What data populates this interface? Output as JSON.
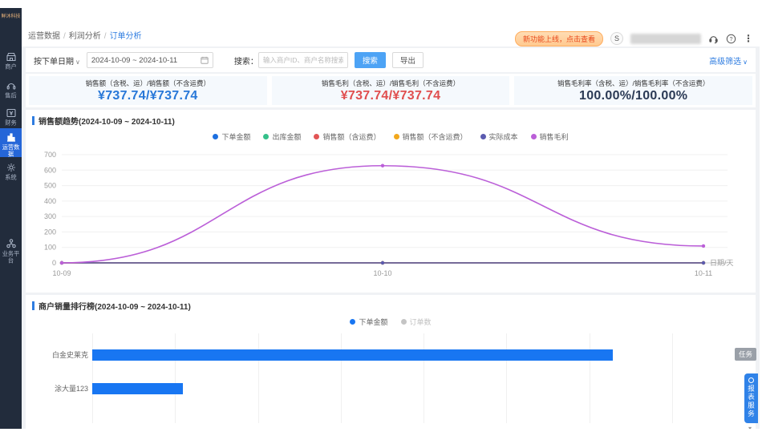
{
  "app": {
    "logo": "鲜沐科技"
  },
  "colors": {
    "accent": "#2e7ce0",
    "sidebar_active": "#2566d8",
    "stat_blue": "#2878d8",
    "stat_red": "#e04e4e",
    "stat_navy": "#2b3a55",
    "bar_blue": "#1876f2"
  },
  "sidebar": {
    "items": [
      {
        "key": "merchant",
        "label": "商户",
        "icon": "storefront-icon",
        "active": false
      },
      {
        "key": "aftersales",
        "label": "售后",
        "icon": "headset-icon",
        "active": false
      },
      {
        "key": "finance",
        "label": "财务",
        "icon": "finance-icon",
        "active": false
      },
      {
        "key": "operations",
        "label": "运营数据",
        "icon": "bar-chart-icon",
        "active": true
      },
      {
        "key": "system",
        "label": "系统",
        "icon": "gear-icon",
        "active": false
      }
    ],
    "bottom_item": {
      "key": "business-platform",
      "label": "业务平台",
      "icon": "platform-icon"
    }
  },
  "breadcrumb": {
    "separator": "/",
    "items": [
      "运营数据",
      "利润分析",
      "订单分析"
    ]
  },
  "topbar": {
    "promo_badge": "新功能上线，点击查看",
    "avatar_initial": "S"
  },
  "filters": {
    "date_type_label": "按下单日期",
    "date_range": "2024-10-09 ~ 2024-10-11",
    "search_label": "搜索：",
    "search_placeholder": "输入商户ID、商户名称搜索",
    "search_button": "搜索",
    "export_button": "导出",
    "advanced_link": "高级筛选"
  },
  "stats": [
    {
      "label": "销售额（含税、运）/销售额（不含运费）",
      "value": "¥737.74/¥737.74",
      "color": "#2878d8"
    },
    {
      "label": "销售毛利（含税、运）/销售毛利（不含运费）",
      "value": "¥737.74/¥737.74",
      "color": "#e04e4e"
    },
    {
      "label": "销售毛利率（含税、运）/销售毛利率（不含运费）",
      "value": "100.00%/100.00%",
      "color": "#2b3a55"
    }
  ],
  "floating": {
    "task_badge": "任务",
    "service_tab": "报表服务"
  },
  "chart_data": [
    {
      "type": "line",
      "title": "销售额趋势(2024-10-09 ~ 2024-10-11)",
      "x": [
        "10-09",
        "10-10",
        "10-11"
      ],
      "xlabel": "日期/天",
      "ylim": [
        0,
        700
      ],
      "yticks": [
        0,
        100,
        200,
        300,
        400,
        500,
        600,
        700
      ],
      "grid": true,
      "smooth": true,
      "legend_position": "top",
      "series": [
        {
          "name": "下单金额",
          "color": "#1c6fe0",
          "values": [
            0,
            0,
            0
          ]
        },
        {
          "name": "出库金额",
          "color": "#35c08a",
          "values": [
            0,
            0,
            0
          ]
        },
        {
          "name": "销售额（含运费）",
          "color": "#e25555",
          "values": [
            0,
            0,
            0
          ]
        },
        {
          "name": "销售额（不含运费）",
          "color": "#f2a81d",
          "values": [
            0,
            0,
            0
          ]
        },
        {
          "name": "实际成本",
          "color": "#5b5bb0",
          "values": [
            0,
            0,
            0
          ]
        },
        {
          "name": "销售毛利",
          "color": "#bb5fd8",
          "values": [
            0,
            628.74,
            109
          ]
        }
      ]
    },
    {
      "type": "bar",
      "orientation": "horizontal",
      "title": "商户销量排行榜(2024-10-09 ~ 2024-10-11)",
      "legend": [
        {
          "name": "下单金额",
          "active": true,
          "color": "#1876f2"
        },
        {
          "name": "订单数",
          "active": false,
          "color": "#c4c4c4"
        }
      ],
      "categories": [
        "白金史莱克",
        "涂大量123"
      ],
      "values": [
        628.74,
        109
      ],
      "bar_color": "#1876f2",
      "xlim": [
        0,
        700
      ]
    }
  ]
}
